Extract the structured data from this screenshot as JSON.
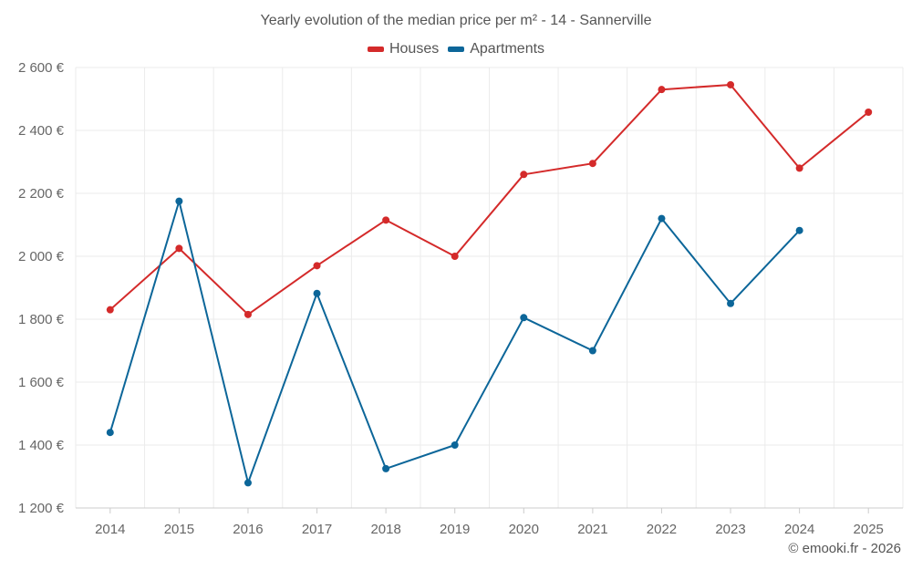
{
  "chart_data": {
    "type": "line",
    "title": "Yearly evolution of the median price per m² - 14 - Sannerville",
    "xlabel": "",
    "ylabel": "",
    "x": [
      "2014",
      "2015",
      "2016",
      "2017",
      "2018",
      "2019",
      "2020",
      "2021",
      "2022",
      "2023",
      "2024",
      "2025"
    ],
    "y_ticks": [
      1200,
      1400,
      1600,
      1800,
      2000,
      2200,
      2400,
      2600
    ],
    "y_tick_labels": [
      "1 200 €",
      "1 400 €",
      "1 600 €",
      "1 800 €",
      "2 000 €",
      "2 200 €",
      "2 400 €",
      "2 600 €"
    ],
    "ylim": [
      1200,
      2600
    ],
    "grid": true,
    "legend_position": "top-center",
    "series": [
      {
        "name": "Houses",
        "color": "#d42a2a",
        "values": [
          1830,
          2025,
          1815,
          1970,
          2115,
          2000,
          2260,
          2295,
          2530,
          2545,
          2280,
          2458
        ]
      },
      {
        "name": "Apartments",
        "color": "#0c6699",
        "values": [
          1440,
          2175,
          1280,
          1882,
          1325,
          1400,
          1805,
          1700,
          2120,
          1850,
          2082,
          null
        ]
      }
    ]
  },
  "footer": {
    "credit": "© emooki.fr - 2026"
  }
}
